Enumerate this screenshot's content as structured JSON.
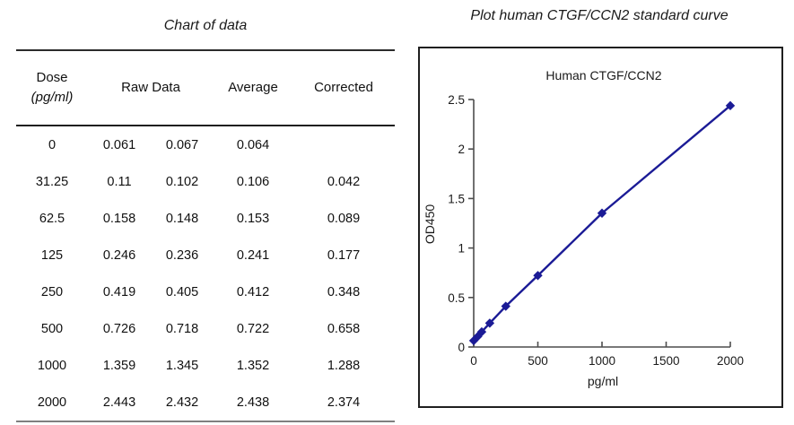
{
  "data_table": {
    "title": "Chart of data",
    "header": {
      "dose_line1": "Dose",
      "dose_line2": "(pg/ml)",
      "raw": "Raw Data",
      "average": "Average",
      "corrected": "Corrected"
    },
    "rows": [
      {
        "dose": "0",
        "raw1": "0.061",
        "raw2": "0.067",
        "average": "0.064",
        "corrected": ""
      },
      {
        "dose": "31.25",
        "raw1": "0.11",
        "raw2": "0.102",
        "average": "0.106",
        "corrected": "0.042"
      },
      {
        "dose": "62.5",
        "raw1": "0.158",
        "raw2": "0.148",
        "average": "0.153",
        "corrected": "0.089"
      },
      {
        "dose": "125",
        "raw1": "0.246",
        "raw2": "0.236",
        "average": "0.241",
        "corrected": "0.177"
      },
      {
        "dose": "250",
        "raw1": "0.419",
        "raw2": "0.405",
        "average": "0.412",
        "corrected": "0.348"
      },
      {
        "dose": "500",
        "raw1": "0.726",
        "raw2": "0.718",
        "average": "0.722",
        "corrected": "0.658"
      },
      {
        "dose": "1000",
        "raw1": "1.359",
        "raw2": "1.345",
        "average": "1.352",
        "corrected": "1.288"
      },
      {
        "dose": "2000",
        "raw1": "2.443",
        "raw2": "2.432",
        "average": "2.438",
        "corrected": "2.374"
      }
    ]
  },
  "plot_panel": {
    "title": "Plot human CTGF/CCN2 standard curve"
  },
  "chart_data": {
    "type": "line",
    "title": "Human CTGF/CCN2",
    "xlabel": "pg/ml",
    "ylabel": "OD450",
    "x": [
      0,
      31.25,
      62.5,
      125,
      250,
      500,
      1000,
      2000
    ],
    "y": [
      0.064,
      0.106,
      0.153,
      0.241,
      0.412,
      0.722,
      1.352,
      2.438
    ],
    "xlim": [
      0,
      2000
    ],
    "ylim": [
      0,
      2.5
    ],
    "xticks": [
      0,
      500,
      1000,
      1500,
      2000
    ],
    "yticks": [
      0,
      0.5,
      1,
      1.5,
      2,
      2.5
    ],
    "grid": false,
    "legend": false,
    "marker": "diamond",
    "line_color": "#1b1b96",
    "axis_color": "#4d4d4d",
    "text_color": "#1a1a1a"
  }
}
